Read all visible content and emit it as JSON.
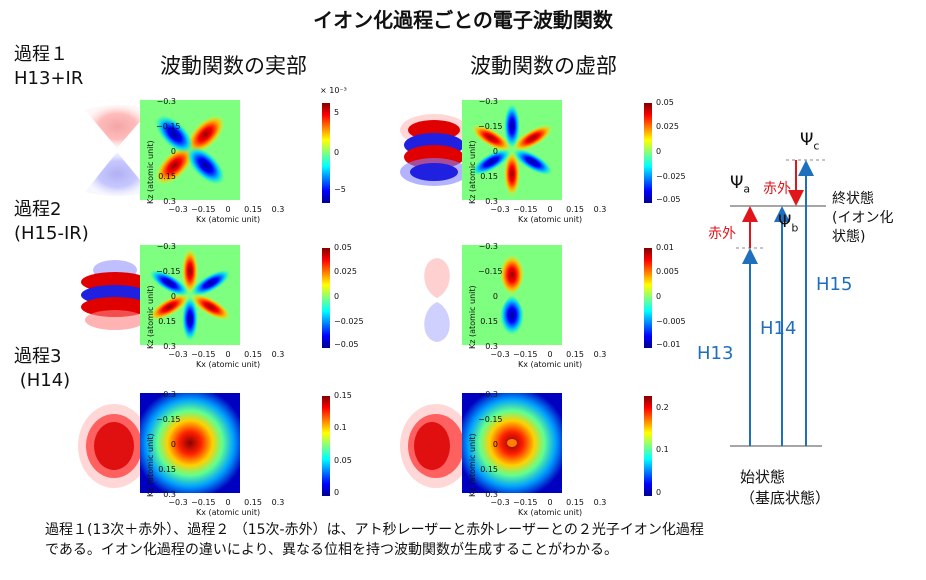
{
  "title": "イオン化過程ごとの電子波動関数",
  "columns": {
    "real": "波動関数の実部",
    "imag": "波動関数の虚部"
  },
  "processes": [
    {
      "label": "過程１\nH13+IR"
    },
    {
      "label": "過程2\n(H15-IR)"
    },
    {
      "label": "過程3\n (H14)"
    }
  ],
  "axes": {
    "xlabel": "Kx (atomic unit)",
    "ylabel": "Kz (atomic unit)",
    "xticks": [
      "−0.3",
      "−0.15",
      "0",
      "0.15",
      "0.3"
    ],
    "yticks": [
      "−0.3",
      "−0.15",
      "0",
      "0.15",
      "0.3"
    ]
  },
  "colorbars": {
    "r1": {
      "scale": "× 10⁻³",
      "ticks": [
        "5",
        "0",
        "−5"
      ]
    },
    "i1": {
      "ticks": [
        "0.05",
        "0.025",
        "0",
        "−0.025",
        "−0.05"
      ]
    },
    "r2": {
      "ticks": [
        "0.05",
        "0.025",
        "0",
        "−0.025",
        "−0.05"
      ]
    },
    "i2": {
      "ticks": [
        "0.01",
        "0.005",
        "0",
        "−0.005",
        "−0.01"
      ]
    },
    "r3": {
      "ticks": [
        "0.15",
        "0.1",
        "0.05",
        "0"
      ]
    },
    "i3": {
      "ticks": [
        "0.2",
        "0.1",
        "0"
      ]
    }
  },
  "energy_diagram": {
    "final_state": "終状態\n(イオン化\n状態)",
    "initial_state": "始状態\n（基底状態）",
    "ir_label": "赤外",
    "h13": "H13",
    "h14": "H14",
    "h15": "H15",
    "psi_a": "Ψ",
    "psi_a_sub": "a",
    "psi_b": "Ψ",
    "psi_b_sub": "b",
    "psi_c": "Ψ",
    "psi_c_sub": "c"
  },
  "caption": "過程１(13次＋赤外）、過程２ （15次-赤外）は、アト秒レーザーと赤外レーザーとの２光子イオン化過程\nである。イオン化過程の違いにより、異なる位相を持つ波動関数が生成することがわかる。",
  "colors": {
    "arrow_blue": "#1f6fbf",
    "arrow_red": "#e0161b",
    "level_gray": "#888888"
  }
}
